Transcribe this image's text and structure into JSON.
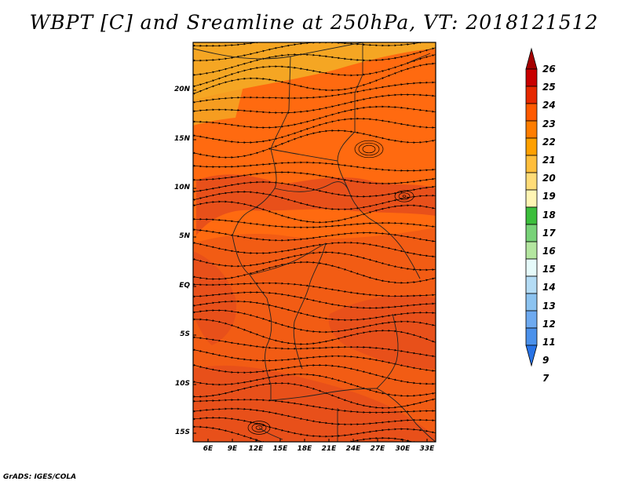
{
  "title": "WBPT [C] and Sreamline at 250hPa, VT: 2018121512",
  "credit": "GrADS: IGES/COLA",
  "map": {
    "lat_labels": [
      "20N",
      "15N",
      "10N",
      "5N",
      "EQ",
      "5S",
      "10S",
      "15S"
    ],
    "lon_labels": [
      "6E",
      "9E",
      "12E",
      "15E",
      "18E",
      "21E",
      "24E",
      "27E",
      "30E",
      "33E"
    ]
  },
  "colorbar": {
    "levels": [
      "26",
      "25",
      "24",
      "23",
      "22",
      "21",
      "20",
      "19",
      "18",
      "17",
      "16",
      "15",
      "14",
      "13",
      "12",
      "11",
      "9",
      "7"
    ],
    "colors": [
      "#a50000",
      "#c80000",
      "#e62800",
      "#ff5a00",
      "#ff7d00",
      "#ffa000",
      "#ffbe3c",
      "#ffdc78",
      "#fff5b4",
      "#3cbe3c",
      "#78d278",
      "#b4e6a0",
      "#e6fafa",
      "#b4dcf5",
      "#8cc3f0",
      "#6eaaf0",
      "#4b91eb",
      "#2873e6"
    ]
  },
  "field_colors": {
    "north": "#f5a623",
    "mid": "#ff6a10",
    "south": "#f25c14",
    "patch": "#e8501a"
  }
}
